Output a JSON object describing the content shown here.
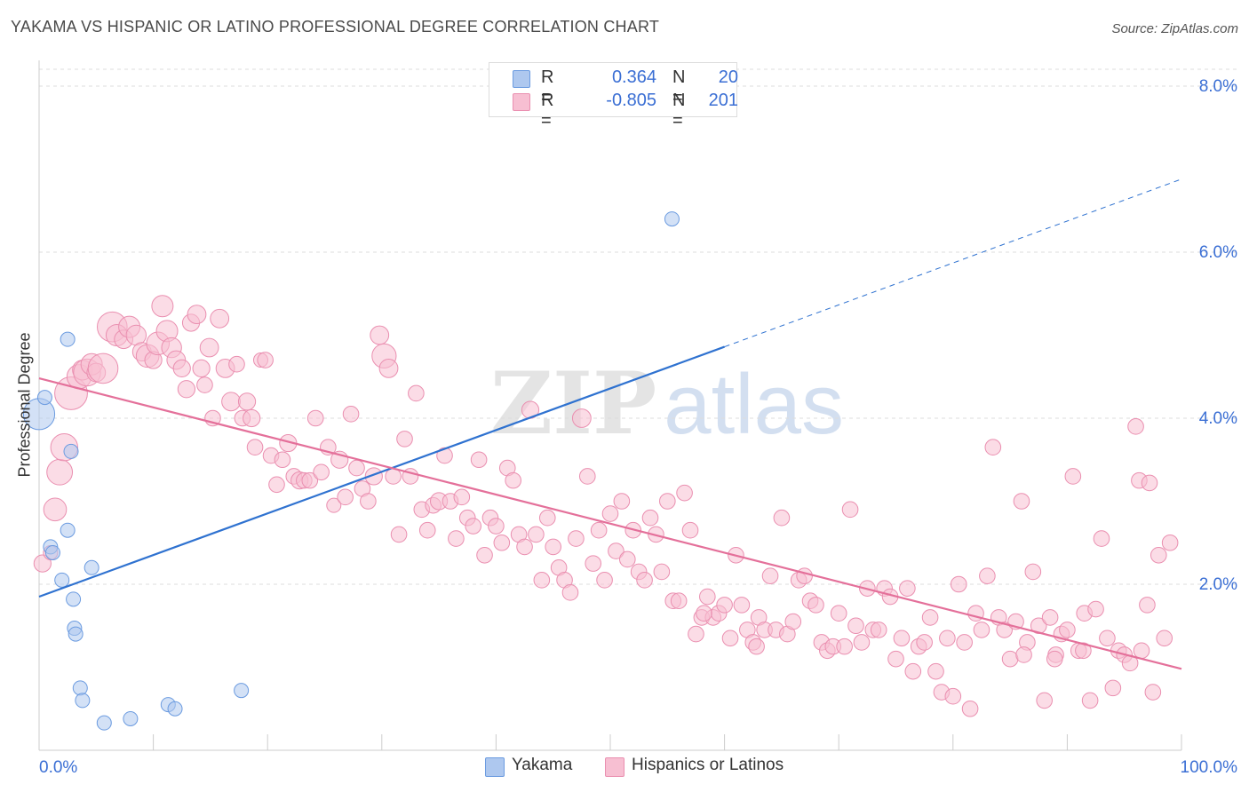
{
  "title": "YAKAMA VS HISPANIC OR LATINO PROFESSIONAL DEGREE CORRELATION CHART",
  "source": "Source: ZipAtlas.com",
  "watermark": {
    "part1": "ZIP",
    "part2": "atlas"
  },
  "legend_top": {
    "rows": [
      {
        "r_label": "R =",
        "r_value": "0.364",
        "n_label": "N =",
        "n_value": "20"
      },
      {
        "r_label": "R =",
        "r_value": "-0.805",
        "n_label": "N =",
        "n_value": "201"
      }
    ]
  },
  "legend_bottom": {
    "items": [
      {
        "label": "Yakama"
      },
      {
        "label": "Hispanics or Latinos"
      }
    ]
  },
  "colors": {
    "blue_fill": "#aec8ef",
    "blue_stroke": "#6b9be0",
    "blue_line": "#2f72d0",
    "pink_fill": "#f7bfd2",
    "pink_stroke": "#ea8fb0",
    "pink_line": "#e4709a",
    "tick_label": "#3b6fd4",
    "grid": "#dddddd"
  },
  "chart_data": {
    "type": "scatter",
    "title": "YAKAMA VS HISPANIC OR LATINO PROFESSIONAL DEGREE CORRELATION CHART",
    "xlabel": "",
    "ylabel": "Professional Degree",
    "xlim": [
      0,
      100
    ],
    "ylim": [
      0,
      8
    ],
    "x_tick_labels": [
      "0.0%",
      "100.0%"
    ],
    "y_ticks": [
      2,
      4,
      6,
      8
    ],
    "y_tick_labels": [
      "2.0%",
      "4.0%",
      "6.0%",
      "8.0%"
    ],
    "grid": "horizontal dashed",
    "legend_position": "top-center and bottom",
    "series": [
      {
        "name": "Yakama",
        "r": 0.364,
        "n": 20,
        "trend": {
          "x0": 0,
          "y0": 1.85,
          "x1": 60,
          "y1": 4.86,
          "dashed_to_x": 100,
          "dashed_to_y": 6.88
        },
        "points": [
          [
            0,
            4.05,
            2.2
          ],
          [
            0.5,
            4.25,
            1
          ],
          [
            1.0,
            2.45,
            1
          ],
          [
            1.2,
            2.38,
            1
          ],
          [
            2.0,
            2.05,
            1
          ],
          [
            2.5,
            2.65,
            1
          ],
          [
            2.5,
            4.95,
            1
          ],
          [
            2.8,
            3.6,
            1
          ],
          [
            3.0,
            1.82,
            1
          ],
          [
            3.1,
            1.47,
            1
          ],
          [
            3.2,
            1.4,
            1
          ],
          [
            3.6,
            0.75,
            1
          ],
          [
            3.8,
            0.6,
            1
          ],
          [
            4.6,
            2.2,
            1
          ],
          [
            5.7,
            0.33,
            1
          ],
          [
            8.0,
            0.38,
            1
          ],
          [
            11.3,
            0.55,
            1
          ],
          [
            11.9,
            0.5,
            1
          ],
          [
            17.7,
            0.72,
            1
          ],
          [
            55.4,
            6.4,
            1
          ]
        ]
      },
      {
        "name": "Hispanics or Latinos",
        "r": -0.805,
        "n": 201,
        "trend": {
          "x0": 0,
          "y0": 4.48,
          "x1": 100,
          "y1": 0.98
        },
        "points": [
          [
            0.3,
            2.25,
            1.2
          ],
          [
            1.0,
            2.38,
            1
          ],
          [
            1.4,
            2.9,
            1.6
          ],
          [
            1.8,
            3.35,
            1.8
          ],
          [
            2.2,
            3.65,
            1.9
          ],
          [
            2.8,
            4.3,
            2.3
          ],
          [
            3.5,
            4.5,
            1.7
          ],
          [
            3.8,
            4.58,
            1.4
          ],
          [
            4.2,
            4.55,
            1.9
          ],
          [
            4.6,
            4.65,
            1.5
          ],
          [
            5.0,
            4.55,
            1.3
          ],
          [
            5.6,
            4.6,
            2.1
          ],
          [
            6.4,
            5.1,
            2.1
          ],
          [
            6.8,
            5.0,
            1.5
          ],
          [
            7.4,
            4.95,
            1.3
          ],
          [
            7.9,
            5.1,
            1.5
          ],
          [
            8.5,
            5.0,
            1.4
          ],
          [
            9.0,
            4.8,
            1.3
          ],
          [
            9.5,
            4.75,
            1.6
          ],
          [
            10.0,
            4.7,
            1.2
          ],
          [
            10.4,
            4.9,
            1.6
          ],
          [
            10.8,
            5.35,
            1.5
          ],
          [
            11.2,
            5.05,
            1.5
          ],
          [
            11.6,
            4.85,
            1.4
          ],
          [
            12.0,
            4.7,
            1.3
          ],
          [
            12.5,
            4.6,
            1.2
          ],
          [
            12.9,
            4.35,
            1.2
          ],
          [
            13.3,
            5.15,
            1.2
          ],
          [
            13.8,
            5.25,
            1.3
          ],
          [
            14.2,
            4.6,
            1.2
          ],
          [
            14.5,
            4.4,
            1.1
          ],
          [
            14.9,
            4.85,
            1.3
          ],
          [
            15.2,
            4.0,
            1.1
          ],
          [
            15.8,
            5.2,
            1.3
          ],
          [
            16.3,
            4.6,
            1.3
          ],
          [
            16.8,
            4.2,
            1.3
          ],
          [
            17.3,
            4.65,
            1.1
          ],
          [
            17.8,
            4.0,
            1.1
          ],
          [
            18.2,
            4.2,
            1.2
          ],
          [
            18.6,
            4.0,
            1.2
          ],
          [
            18.9,
            3.65,
            1.1
          ],
          [
            19.4,
            4.7,
            1.0
          ],
          [
            19.8,
            4.7,
            1.1
          ],
          [
            20.3,
            3.55,
            1.1
          ],
          [
            20.8,
            3.2,
            1.1
          ],
          [
            21.3,
            3.5,
            1.1
          ],
          [
            21.8,
            3.7,
            1.2
          ],
          [
            22.3,
            3.3,
            1.1
          ],
          [
            22.8,
            3.25,
            1.2
          ],
          [
            23.2,
            3.25,
            1.1
          ],
          [
            23.7,
            3.25,
            1.1
          ],
          [
            24.2,
            4.0,
            1.1
          ],
          [
            24.7,
            3.35,
            1.1
          ],
          [
            25.3,
            3.65,
            1.1
          ],
          [
            25.8,
            2.95,
            1.0
          ],
          [
            26.3,
            3.5,
            1.2
          ],
          [
            26.8,
            3.05,
            1.1
          ],
          [
            27.3,
            4.05,
            1.1
          ],
          [
            27.8,
            3.4,
            1.1
          ],
          [
            28.3,
            3.15,
            1.1
          ],
          [
            28.8,
            3.0,
            1.1
          ],
          [
            29.3,
            3.3,
            1.2
          ],
          [
            29.8,
            5.0,
            1.3
          ],
          [
            30.2,
            4.75,
            1.7
          ],
          [
            30.6,
            4.6,
            1.3
          ],
          [
            31.0,
            3.3,
            1.1
          ],
          [
            31.5,
            2.6,
            1.1
          ],
          [
            32.0,
            3.75,
            1.1
          ],
          [
            32.5,
            3.3,
            1.1
          ],
          [
            33.0,
            4.3,
            1.1
          ],
          [
            33.5,
            2.9,
            1.1
          ],
          [
            34.0,
            2.65,
            1.1
          ],
          [
            34.5,
            2.95,
            1.1
          ],
          [
            35.0,
            3.0,
            1.2
          ],
          [
            35.5,
            3.55,
            1.1
          ],
          [
            36.0,
            3.0,
            1.1
          ],
          [
            36.5,
            2.55,
            1.1
          ],
          [
            37.0,
            3.05,
            1.1
          ],
          [
            37.5,
            2.8,
            1.1
          ],
          [
            38.0,
            2.7,
            1.1
          ],
          [
            38.5,
            3.5,
            1.1
          ],
          [
            39.0,
            2.35,
            1.1
          ],
          [
            39.5,
            2.8,
            1.1
          ],
          [
            40.0,
            2.7,
            1.1
          ],
          [
            40.5,
            2.5,
            1.1
          ],
          [
            41.0,
            3.4,
            1.1
          ],
          [
            41.5,
            3.25,
            1.1
          ],
          [
            42.0,
            2.6,
            1.1
          ],
          [
            42.5,
            2.45,
            1.1
          ],
          [
            43.0,
            4.1,
            1.2
          ],
          [
            43.5,
            2.6,
            1.1
          ],
          [
            44.0,
            2.05,
            1.1
          ],
          [
            44.5,
            2.8,
            1.1
          ],
          [
            45.0,
            2.45,
            1.1
          ],
          [
            45.5,
            2.2,
            1.1
          ],
          [
            46.0,
            2.05,
            1.1
          ],
          [
            46.5,
            1.9,
            1.1
          ],
          [
            47.0,
            2.55,
            1.1
          ],
          [
            47.5,
            4.0,
            1.3
          ],
          [
            48.0,
            3.3,
            1.1
          ],
          [
            48.5,
            2.25,
            1.1
          ],
          [
            49.0,
            2.65,
            1.1
          ],
          [
            49.5,
            2.05,
            1.1
          ],
          [
            50.0,
            2.85,
            1.1
          ],
          [
            50.5,
            2.4,
            1.1
          ],
          [
            51.0,
            3.0,
            1.1
          ],
          [
            51.5,
            2.3,
            1.1
          ],
          [
            52.0,
            2.65,
            1.1
          ],
          [
            52.5,
            2.15,
            1.1
          ],
          [
            53.0,
            2.05,
            1.1
          ],
          [
            53.5,
            2.8,
            1.1
          ],
          [
            54.0,
            2.6,
            1.1
          ],
          [
            54.5,
            2.15,
            1.1
          ],
          [
            55.0,
            3.0,
            1.1
          ],
          [
            55.5,
            1.8,
            1.1
          ],
          [
            56.0,
            1.8,
            1.1
          ],
          [
            56.5,
            3.1,
            1.1
          ],
          [
            57.0,
            2.65,
            1.1
          ],
          [
            57.5,
            1.4,
            1.1
          ],
          [
            58.0,
            1.6,
            1.1
          ],
          [
            58.5,
            1.85,
            1.1
          ],
          [
            59.0,
            1.6,
            1.1
          ],
          [
            59.5,
            1.65,
            1.1
          ],
          [
            60.0,
            1.75,
            1.1
          ],
          [
            60.5,
            1.35,
            1.1
          ],
          [
            61.0,
            2.35,
            1.1
          ],
          [
            61.5,
            1.75,
            1.1
          ],
          [
            62.0,
            1.45,
            1.1
          ],
          [
            62.5,
            1.3,
            1.1
          ],
          [
            63.0,
            1.6,
            1.1
          ],
          [
            63.5,
            1.45,
            1.1
          ],
          [
            64.0,
            2.1,
            1.1
          ],
          [
            64.5,
            1.45,
            1.1
          ],
          [
            65.0,
            2.8,
            1.1
          ],
          [
            65.5,
            1.4,
            1.1
          ],
          [
            66.0,
            1.55,
            1.1
          ],
          [
            66.5,
            2.05,
            1.1
          ],
          [
            67.0,
            2.1,
            1.1
          ],
          [
            67.5,
            1.8,
            1.1
          ],
          [
            68.0,
            1.75,
            1.1
          ],
          [
            68.5,
            1.3,
            1.1
          ],
          [
            69.0,
            1.2,
            1.1
          ],
          [
            69.5,
            1.25,
            1.1
          ],
          [
            70.0,
            1.65,
            1.1
          ],
          [
            70.5,
            1.25,
            1.1
          ],
          [
            71.0,
            2.9,
            1.1
          ],
          [
            71.5,
            1.5,
            1.1
          ],
          [
            72.0,
            1.3,
            1.1
          ],
          [
            72.5,
            1.95,
            1.1
          ],
          [
            73.0,
            1.45,
            1.1
          ],
          [
            73.5,
            1.45,
            1.1
          ],
          [
            74.0,
            1.95,
            1.1
          ],
          [
            74.5,
            1.85,
            1.1
          ],
          [
            75.0,
            1.1,
            1.1
          ],
          [
            75.5,
            1.35,
            1.1
          ],
          [
            76.0,
            1.95,
            1.1
          ],
          [
            76.5,
            0.95,
            1.1
          ],
          [
            77.0,
            1.25,
            1.1
          ],
          [
            77.5,
            1.3,
            1.1
          ],
          [
            78.0,
            1.6,
            1.1
          ],
          [
            78.5,
            0.95,
            1.1
          ],
          [
            79.0,
            0.7,
            1.1
          ],
          [
            79.5,
            1.35,
            1.1
          ],
          [
            80.0,
            0.65,
            1.1
          ],
          [
            80.5,
            2.0,
            1.1
          ],
          [
            81.0,
            1.3,
            1.1
          ],
          [
            81.5,
            0.5,
            1.1
          ],
          [
            82.0,
            1.65,
            1.1
          ],
          [
            82.5,
            1.45,
            1.1
          ],
          [
            83.0,
            2.1,
            1.1
          ],
          [
            83.5,
            3.65,
            1.1
          ],
          [
            84.0,
            1.6,
            1.1
          ],
          [
            84.5,
            1.45,
            1.1
          ],
          [
            85.0,
            1.1,
            1.1
          ],
          [
            85.5,
            1.55,
            1.1
          ],
          [
            86.0,
            3.0,
            1.1
          ],
          [
            86.5,
            1.3,
            1.1
          ],
          [
            87.0,
            2.15,
            1.1
          ],
          [
            87.5,
            1.5,
            1.1
          ],
          [
            88.0,
            0.6,
            1.1
          ],
          [
            88.5,
            1.6,
            1.1
          ],
          [
            89.0,
            1.15,
            1.1
          ],
          [
            89.5,
            1.4,
            1.1
          ],
          [
            90.0,
            1.45,
            1.1
          ],
          [
            90.5,
            3.3,
            1.1
          ],
          [
            91.0,
            1.2,
            1.1
          ],
          [
            91.5,
            1.65,
            1.1
          ],
          [
            92.0,
            0.6,
            1.1
          ],
          [
            92.5,
            1.7,
            1.1
          ],
          [
            93.0,
            2.55,
            1.1
          ],
          [
            93.5,
            1.35,
            1.1
          ],
          [
            94.0,
            0.75,
            1.1
          ],
          [
            94.5,
            1.2,
            1.1
          ],
          [
            95.0,
            1.15,
            1.1
          ],
          [
            95.5,
            1.05,
            1.1
          ],
          [
            96.0,
            3.9,
            1.1
          ],
          [
            96.5,
            1.2,
            1.1
          ],
          [
            97.0,
            1.75,
            1.1
          ],
          [
            97.5,
            0.7,
            1.1
          ],
          [
            98.0,
            2.35,
            1.1
          ],
          [
            98.5,
            1.35,
            1.1
          ],
          [
            99.0,
            2.5,
            1.1
          ],
          [
            96.3,
            3.25,
            1.1
          ],
          [
            97.2,
            3.22,
            1.1
          ],
          [
            86.2,
            1.15,
            1.1
          ],
          [
            88.9,
            1.1,
            1.1
          ],
          [
            91.4,
            1.2,
            1.1
          ],
          [
            62.8,
            1.25,
            1.1
          ],
          [
            58.2,
            1.65,
            1.1
          ]
        ]
      }
    ]
  },
  "axes": {
    "ylabel": "Professional Degree",
    "x_left": "0.0%",
    "x_right": "100.0%"
  }
}
